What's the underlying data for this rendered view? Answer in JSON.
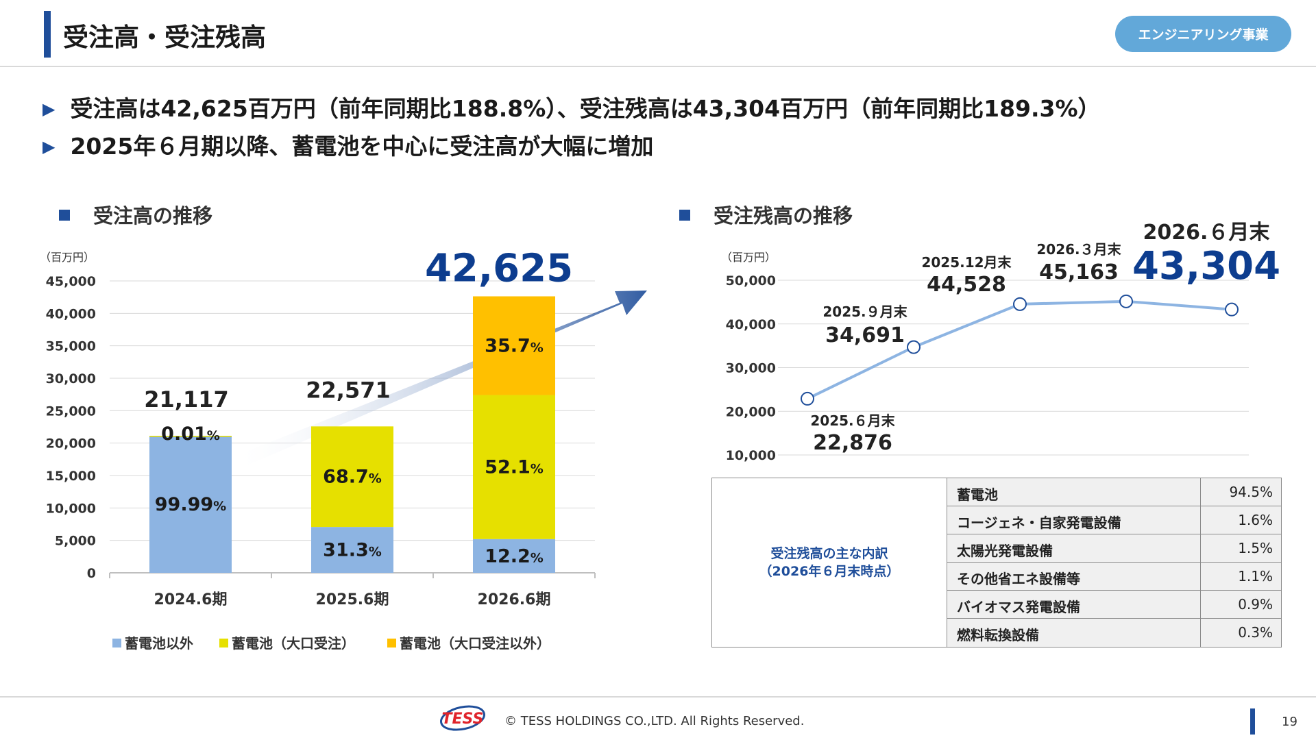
{
  "header": {
    "title": "受注高・受注残高",
    "division": "エンジニアリング事業"
  },
  "bullets": [
    "受注高は42,625百万円（前年同期比188.8%）、受注残高は43,304百万円（前年同期比189.3%）",
    "2025年６月期以降、蓄電池を中心に受注高が大幅に増加"
  ],
  "chart_data": [
    {
      "type": "bar",
      "title": "受注高の推移",
      "unit": "（百万円）",
      "stacked": true,
      "categories": [
        "2024.6期",
        "2025.6期",
        "2026.6期"
      ],
      "totals": [
        21117,
        22571,
        42625
      ],
      "total_labels": [
        "21,117",
        "22,571",
        "42,625"
      ],
      "highlight_total_color": "#0d3d8f",
      "ylim": [
        0,
        45000
      ],
      "yticks": [
        0,
        5000,
        10000,
        15000,
        20000,
        25000,
        30000,
        35000,
        40000,
        45000
      ],
      "ytick_labels": [
        "0",
        "5,000",
        "10,000",
        "15,000",
        "20,000",
        "25,000",
        "30,000",
        "35,000",
        "40,000",
        "45,000"
      ],
      "grid": true,
      "legend": "bottom",
      "series": [
        {
          "name": "蓄電池以外",
          "color": "#8db4e2",
          "values": [
            21115,
            7065,
            5200
          ],
          "pct_labels": [
            "99.99",
            "31.3",
            "12.2"
          ]
        },
        {
          "name": "蓄電池（大口受注）",
          "color": "#e6e000",
          "values": [
            2,
            15506,
            22208
          ],
          "pct_labels": [
            "0.01",
            "68.7",
            "52.1"
          ]
        },
        {
          "name": "蓄電池（大口受注以外）",
          "color": "#ffc000",
          "values": [
            0,
            0,
            15217
          ],
          "pct_labels": [
            "",
            "",
            "35.7"
          ]
        }
      ],
      "pct_unit": "%",
      "arrow_color": "#1f4e9a"
    },
    {
      "type": "line",
      "title": "受注残高の推移",
      "unit": "（百万円）",
      "categories": [
        "2025.６月末",
        "2025.９月末",
        "2025.12月末",
        "2026.３月末",
        "2026.６月末"
      ],
      "values": [
        22876,
        34691,
        44528,
        45163,
        43304
      ],
      "value_labels": [
        "22,876",
        "34,691",
        "44,528",
        "45,163",
        "43,304"
      ],
      "ylim": [
        10000,
        50000
      ],
      "yticks": [
        10000,
        20000,
        30000,
        40000,
        50000
      ],
      "ytick_labels": [
        "10,000",
        "20,000",
        "30,000",
        "40,000",
        "50,000"
      ],
      "grid": true,
      "line_color": "#8db4e2",
      "highlight_color": "#0d3d8f"
    }
  ],
  "breakdown": {
    "label_line1": "受注残高の主な内訳",
    "label_line2": "（2026年６月末時点）",
    "rows": [
      {
        "name": "蓄電池",
        "value": "94.5%"
      },
      {
        "name": "コージェネ・自家発電設備",
        "value": "1.6%"
      },
      {
        "name": "太陽光発電設備",
        "value": "1.5%"
      },
      {
        "name": "その他省エネ設備等",
        "value": "1.1%"
      },
      {
        "name": "バイオマス発電設備",
        "value": "0.9%"
      },
      {
        "name": "燃料転換設備",
        "value": "0.3%"
      }
    ]
  },
  "footer": {
    "logo_text": "TESS",
    "copyright": "© TESS HOLDINGS CO.,LTD. All Rights Reserved.",
    "page_number": "19"
  }
}
